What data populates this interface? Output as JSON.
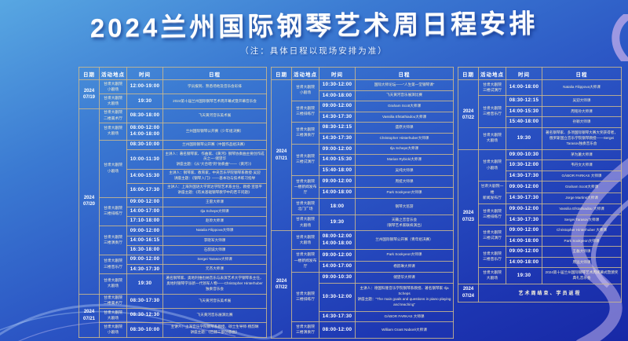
{
  "title": "2024兰州国际钢琴艺术周日程安排",
  "note": "（注：具体日程以现场安排为准）",
  "columns": [
    "日期",
    "活动地点",
    "时间",
    "日程"
  ],
  "accent_colors": {
    "background_top": "#58a7e2",
    "background_bottom": "#1728a6",
    "grid_line": "#cdb98c",
    "text_main": "#ffffff",
    "text_schedule": "#f5eecb",
    "ribbon": "#c3b2ec"
  },
  "panels": [
    {
      "groups": [
        {
          "date": "2024\n07/19",
          "sections": [
            {
              "location": "甘肃大剧院\n小剧场",
              "rows": [
                {
                  "time": "12:00-19:00",
                  "desc": "学员报到、熟悉场地及音乐会彩排"
                }
              ]
            },
            {
              "location": "甘肃大剧院\n大剧场",
              "rows": [
                {
                  "time": "19:30",
                  "desc": "2024第十届兰州国际钢琴艺术周开幕式暨开幕音乐会"
                }
              ]
            }
          ]
        },
        {
          "date": "2024\n07/20",
          "sections": [
            {
              "location": "甘肃大剧院\n二楼美术厅",
              "rows": [
                {
                  "time": "08:30-18:00",
                  "desc": "飞天黄河音乐美术展"
                }
              ]
            },
            {
              "location": "甘肃大剧院\n大剧场",
              "rows": [
                {
                  "time": "08:00-12:00\n14:00-18:00",
                  "desc": "兰州国际钢琴公开赛（少年组决赛）"
                }
              ]
            },
            {
              "location": "甘肃大剧院\n小剧场",
              "rows": [
                {
                  "time": "08:30-10:00",
                  "desc": "兰州国际钢琴公开赛（中国作品组决赛）"
                },
                {
                  "time": "10:00-11:30",
                  "desc": "主讲人：著名钢琴家、作曲家、《黄河》钢琴协奏曲主要创作成员之一·储望华\n讲座主题：《从“大合唱”到“协奏曲”——〈黄河〉》"
                },
                {
                  "time": "14:00-15:30",
                  "desc": "主讲人：钢琴家、教育家，中央音乐学院钢琴系教授·吴迎\n讲座主题：《钢琴入门》——基本功与技术练习指导"
                },
                {
                  "time": "16:00-17:30",
                  "desc": "主讲人：上海外国语大学贤达学院艺术系主任，教授·宣恩平\n讲座主题：《有关基础钢琴教学中的若干问题》"
                }
              ]
            },
            {
              "location": "甘肃大剧院\n三楼排练厅",
              "rows": [
                {
                  "time": "09:00-12:00",
                  "desc": "王雷大师课"
                },
                {
                  "time": "14:00-17:00",
                  "desc": "Ilja Scheps大师课"
                },
                {
                  "time": "17:10-18:00",
                  "desc": "赵聆大师课"
                }
              ]
            },
            {
              "location": "甘肃大剧院\n三楼演奏厅",
              "rows": [
                {
                  "time": "09:00-12:00",
                  "desc": "Natalia Filippova大师课"
                },
                {
                  "time": "14:00-16:15",
                  "desc": "李晓军大师课"
                },
                {
                  "time": "16:30-18:00",
                  "desc": "石叔诚大师课"
                }
              ]
            },
            {
              "location": "甘肃大剧院\n三楼音乐厅",
              "rows": [
                {
                  "time": "09:00-12:00",
                  "desc": "Sergei Tarasov大师课"
                },
                {
                  "time": "14:30-17:30",
                  "desc": "元杰大师课"
                }
              ]
            },
            {
              "location": "甘肃大剧院\n大剧场",
              "rows": [
                {
                  "time": "19:30",
                  "desc": "著名钢琴家、奥地利维也纳音乐与表演艺术大学钢琴系主任，\n奥地利钢琴学派新一代领军人物——Christopher Hinterhuber独奏音乐会"
                }
              ]
            }
          ]
        },
        {
          "date": "2024\n07/21",
          "sections": [
            {
              "location": "甘肃大剧院\n二楼美术厅",
              "rows": [
                {
                  "time": "08:30-17:30",
                  "desc": "飞天黄河音乐美术展"
                }
              ]
            },
            {
              "location": "甘肃大剧院\n大剧场",
              "rows": [
                {
                  "time": "08:30-12:30",
                  "desc": "飞天黄河音乐展演比赛"
                }
              ]
            },
            {
              "location": "甘肃大剧院\n小剧场",
              "rows": [
                {
                  "time": "08:30-10:00",
                  "desc": "主讲人：上海音乐学院钢琴系教授、硕士生导师·杨韵琳\n讲座主题：《巴赫三部创意曲》"
                }
              ]
            }
          ]
        }
      ]
    },
    {
      "groups": [
        {
          "date": "2024\n07/21",
          "sections": [
            {
              "location": "甘肃大剧院\n小剧场",
              "rows": [
                {
                  "time": "10:30-12:00",
                  "desc": "国际大师论坛——“人生第一堂钢琴课”"
                },
                {
                  "time": "14:00-18:00",
                  "desc": "飞天黄河音乐展演比赛"
                }
              ]
            },
            {
              "location": "甘肃大剧院\n三楼排练厅",
              "rows": [
                {
                  "time": "09:00-12:00",
                  "desc": "Graham Scott大师课"
                },
                {
                  "time": "14:30-17:30",
                  "desc": "Vassilia Efstathiadou大师课"
                }
              ]
            },
            {
              "location": "甘肃大剧院\n三楼演奏厅",
              "rows": [
                {
                  "time": "08:30-12:15",
                  "desc": "盛原大师课"
                },
                {
                  "time": "14:30-17:30",
                  "desc": "Christopher Hinterhuber大师课"
                }
              ]
            },
            {
              "location": "甘肃大剧院\n三楼试演厅",
              "rows": [
                {
                  "time": "09:00-12:00",
                  "desc": "Ilja Scheps大师课"
                },
                {
                  "time": "14:00-15:30",
                  "desc": "Marian Rybicki大师课"
                },
                {
                  "time": "15:40-18:00",
                  "desc": "吴纯大师课"
                }
              ]
            },
            {
              "location": "甘肃大剧院\n一楼新闻发布厅",
              "rows": [
                {
                  "time": "09:00-12:00",
                  "desc": "周挺大师课"
                },
                {
                  "time": "14:00-18:00",
                  "desc": "Park Sookyeon大师课"
                }
              ]
            },
            {
              "location": "甘肃大剧院\n北门广场",
              "rows": [
                {
                  "time": "18:00",
                  "desc": "钢琴大巡游"
                }
              ]
            },
            {
              "location": "甘肃大剧院\n大剧场",
              "rows": [
                {
                  "time": "19:30",
                  "desc": "天籁之音音乐会\n（钢琴艺术家联袂演出）"
                }
              ]
            }
          ]
        },
        {
          "date": "2024\n07/22",
          "sections": [
            {
              "location": "甘肃大剧院\n大剧场",
              "rows": [
                {
                  "time": "08:00-12:00\n14:00-18:00",
                  "desc": "兰州国际钢琴公开赛（青年组决赛）"
                }
              ]
            },
            {
              "location": "甘肃大剧院\n一楼新闻发布厅",
              "rows": [
                {
                  "time": "09:00-12:00",
                  "desc": "Park Sookyeon大师课"
                },
                {
                  "time": "14:00-17:00",
                  "desc": "杨韵琳大师课"
                }
              ]
            },
            {
              "location": "甘肃大剧院\n三楼排练厅",
              "rows": [
                {
                  "time": "09:00-10:30",
                  "desc": "储望华大师课"
                },
                {
                  "time": "10:30-12:00",
                  "desc": "主讲人：德国科隆音乐学院钢琴系教授、著名钢琴家·Ilja Scheps\n讲座主题：“The main goals and questions in piano playing and teaching”"
                },
                {
                  "time": "14:30-17:30",
                  "desc": "GÁBOR FARKAS 大师课"
                }
              ]
            },
            {
              "location": "甘肃大剧院\n三楼演奏厅",
              "rows": [
                {
                  "time": "08:00-12:00",
                  "desc": "William Grant Naboré大师课"
                }
              ]
            }
          ]
        }
      ]
    },
    {
      "groups": [
        {
          "date": "2024\n07/22",
          "sections": [
            {
              "location": "甘肃大剧院\n三楼试演厅",
              "rows": [
                {
                  "time": "14:00-18:00",
                  "desc": "Natalia Filippova大师课"
                }
              ]
            },
            {
              "location": "甘肃大剧院\n三楼音乐厅",
              "rows": [
                {
                  "time": "08:30-12:15",
                  "desc": "吴迎大师课"
                },
                {
                  "time": "14:00-15:30",
                  "desc": "周铭孙大师课"
                },
                {
                  "time": "15:40-18:00",
                  "desc": "孙颖大师课"
                }
              ]
            },
            {
              "location": "甘肃大剧院\n大剧场",
              "rows": [
                {
                  "time": "19:30",
                  "desc": "著名钢琴家、多项国际钢琴大赛大奖获得者，\n俄罗斯国立音乐学院钢琴教授——Sergei Tarasov独奏音乐会"
                }
              ]
            }
          ]
        },
        {
          "date": "2024\n07/23",
          "sections": [
            {
              "location": "甘肃大剧院\n小剧场",
              "rows": [
                {
                  "time": "09:00-10:30",
                  "desc": "茅为蕙大师课"
                },
                {
                  "time": "10:30-12:00",
                  "desc": "韦丹文大师课"
                },
                {
                  "time": "14:30-17:30",
                  "desc": "GÁBOR FARKAS 大师课"
                }
              ]
            },
            {
              "location": "甘肃大剧院一楼\n新闻发布厅",
              "rows": [
                {
                  "time": "09:00-12:00",
                  "desc": "Graham Scott大师课"
                },
                {
                  "time": "14:30-17:30",
                  "desc": "Jorge Martins大师课"
                }
              ]
            },
            {
              "location": "甘肃大剧院\n三楼排练厅",
              "rows": [
                {
                  "time": "09:00-12:00",
                  "desc": "Vassilia Efstathiadou 大师课"
                },
                {
                  "time": "14:30-17:30",
                  "desc": "Sergei Tarasov大师课"
                }
              ]
            },
            {
              "location": "甘肃大剧院\n三楼试演厅",
              "rows": [
                {
                  "time": "09:00-12:00",
                  "desc": "Christopher Hinterhuber 大师课"
                },
                {
                  "time": "14:00-18:00",
                  "desc": "Park Sookyeon大师课"
                }
              ]
            },
            {
              "location": "甘肃大剧院\n三楼音乐厅",
              "rows": [
                {
                  "time": "09:00-12:00",
                  "desc": "王磊大师课"
                },
                {
                  "time": "14:00-18:00",
                  "desc": "周远大师课"
                }
              ]
            },
            {
              "location": "甘肃大剧院\n大剧场",
              "rows": [
                {
                  "time": "19:30",
                  "desc": "2024第十届兰州国际钢琴艺术周闭幕式暨颁奖典礼音乐会"
                }
              ]
            }
          ]
        },
        {
          "date": "2024\n07/24",
          "sections": [
            {
              "location": "",
              "rows": [
                {
                  "time": "",
                  "desc": "艺术周结束、学员返程",
                  "span": true
                }
              ]
            }
          ]
        }
      ]
    }
  ]
}
